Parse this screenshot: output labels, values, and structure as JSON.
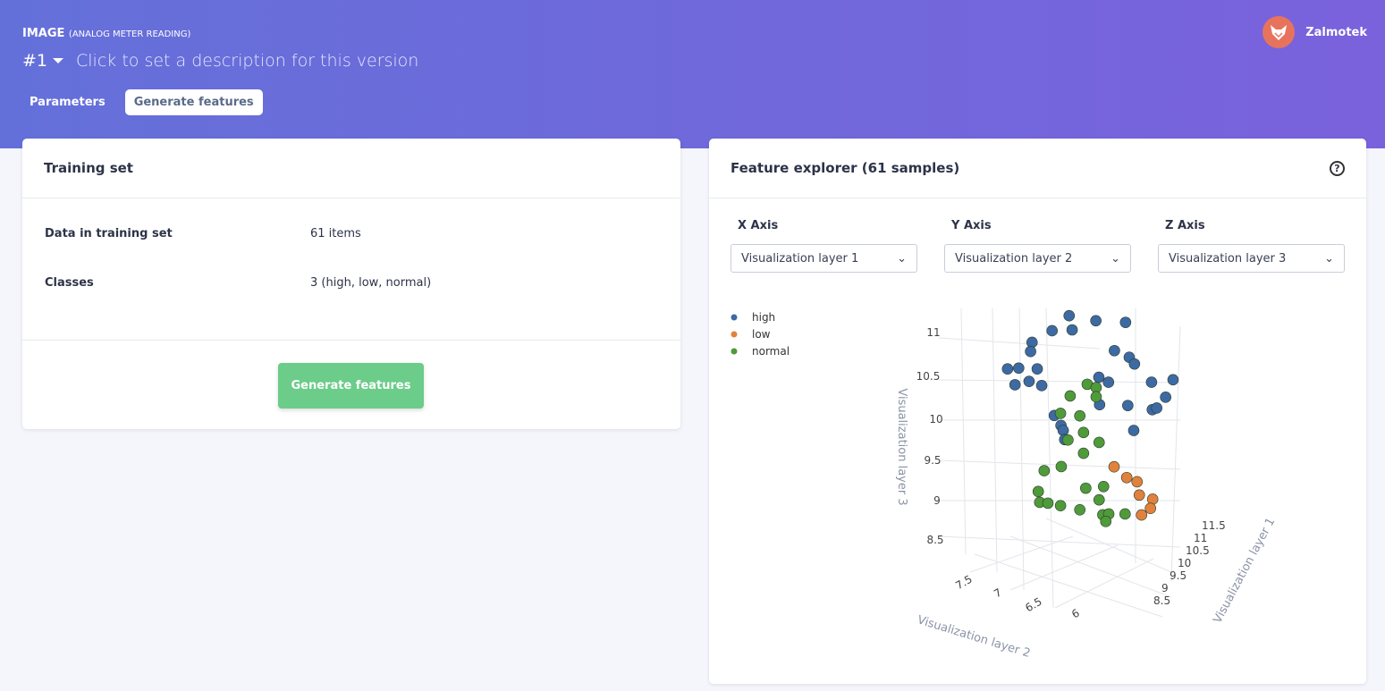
{
  "header": {
    "title": "IMAGE",
    "subtitle": "(ANALOG METER READING)",
    "version": "#1",
    "description": "Click to set a description for this version",
    "tabs": [
      "Parameters",
      "Generate features"
    ],
    "user": "Zalmotek"
  },
  "training": {
    "title": "Training set",
    "rows": [
      {
        "k": "Data in training set",
        "v": "61 items"
      },
      {
        "k": "Classes",
        "v": "3 (high, low, normal)"
      }
    ],
    "button": "Generate features"
  },
  "explorer": {
    "title": "Feature explorer (61 samples)",
    "help": "?",
    "axes": [
      {
        "label": "X Axis",
        "value": "Visualization layer 1"
      },
      {
        "label": "Y Axis",
        "value": "Visualization layer 2"
      },
      {
        "label": "Z Axis",
        "value": "Visualization layer 3"
      }
    ]
  },
  "chart_data": {
    "type": "scatter",
    "dimensions": 3,
    "xlabel": "Visualization layer 1",
    "ylabel": "Visualization layer 2",
    "zlabel": "Visualization layer 3",
    "x_ticks": [
      "8.5",
      "9",
      "9.5",
      "10",
      "10.5",
      "11",
      "11.5"
    ],
    "y_ticks": [
      "7.5",
      "7",
      "6.5",
      "6"
    ],
    "z_ticks": [
      "11",
      "10.5",
      "10",
      "9.5",
      "9",
      "8.5"
    ],
    "legend": [
      {
        "name": "high",
        "color": "#3d6aa3"
      },
      {
        "name": "low",
        "color": "#e0823d"
      },
      {
        "name": "normal",
        "color": "#4f9a3a"
      }
    ],
    "series": [
      {
        "name": "high",
        "points": [
          [
            10.5,
            7.03,
            11.35
          ],
          [
            10.5,
            6.67,
            11.29
          ],
          [
            10.5,
            6.27,
            11.27
          ],
          [
            10.5,
            7.26,
            11.17
          ],
          [
            10.5,
            6.99,
            11.18
          ],
          [
            10.5,
            7.53,
            11.03
          ],
          [
            10.5,
            7.55,
            10.92
          ],
          [
            10.5,
            6.42,
            10.93
          ],
          [
            10.5,
            6.22,
            10.85
          ],
          [
            10.5,
            6.15,
            10.77
          ],
          [
            10.5,
            7.86,
            10.71
          ],
          [
            10.5,
            7.71,
            10.72
          ],
          [
            10.5,
            7.46,
            10.71
          ],
          [
            10.5,
            7.76,
            10.52
          ],
          [
            10.5,
            7.57,
            10.56
          ],
          [
            10.5,
            7.4,
            10.51
          ],
          [
            10.5,
            6.63,
            10.61
          ],
          [
            10.5,
            6.5,
            10.55
          ],
          [
            10.5,
            5.92,
            10.55
          ],
          [
            10.5,
            5.63,
            10.58
          ],
          [
            10.5,
            5.73,
            10.37
          ],
          [
            10.5,
            6.62,
            10.28
          ],
          [
            10.5,
            6.24,
            10.27
          ],
          [
            10.5,
            5.91,
            10.22
          ],
          [
            10.5,
            5.85,
            10.24
          ],
          [
            10.5,
            7.23,
            10.15
          ],
          [
            10.5,
            7.14,
            10.03
          ],
          [
            10.5,
            7.11,
            9.97
          ],
          [
            10.5,
            6.16,
            9.97
          ],
          [
            10.5,
            7.09,
            9.86
          ]
        ]
      },
      {
        "name": "low",
        "points": [
          [
            9,
            6.28,
            9.63
          ],
          [
            9,
            6.11,
            9.5
          ],
          [
            9,
            5.97,
            9.45
          ],
          [
            9,
            5.94,
            9.29
          ],
          [
            9,
            5.76,
            9.24
          ],
          [
            9,
            5.79,
            9.13
          ],
          [
            9,
            5.91,
            9.05
          ]
        ]
      },
      {
        "name": "normal",
        "points": [
          [
            9.5,
            6.69,
            10.59
          ],
          [
            9.5,
            6.57,
            10.55
          ],
          [
            9.5,
            6.92,
            10.45
          ],
          [
            9.5,
            6.57,
            10.44
          ],
          [
            9.5,
            7.05,
            10.24
          ],
          [
            9.5,
            6.79,
            10.21
          ],
          [
            9.5,
            6.74,
            10.01
          ],
          [
            9.5,
            6.95,
            9.92
          ],
          [
            9.5,
            6.53,
            9.89
          ],
          [
            9.5,
            6.74,
            9.76
          ],
          [
            9.5,
            7.27,
            9.55
          ],
          [
            9.5,
            7.04,
            9.6
          ],
          [
            9.5,
            7.35,
            9.3
          ],
          [
            9.5,
            6.71,
            9.34
          ],
          [
            9.5,
            6.47,
            9.36
          ],
          [
            9.5,
            7.33,
            9.17
          ],
          [
            9.5,
            7.22,
            9.16
          ],
          [
            9.5,
            7.05,
            9.13
          ],
          [
            9.5,
            6.79,
            9.08
          ],
          [
            9.5,
            6.53,
            9.2
          ],
          [
            9.5,
            6.48,
            9.02
          ],
          [
            9.5,
            6.4,
            9.03
          ],
          [
            9.5,
            6.44,
            8.94
          ],
          [
            9.5,
            6.18,
            9.03
          ]
        ]
      }
    ]
  }
}
